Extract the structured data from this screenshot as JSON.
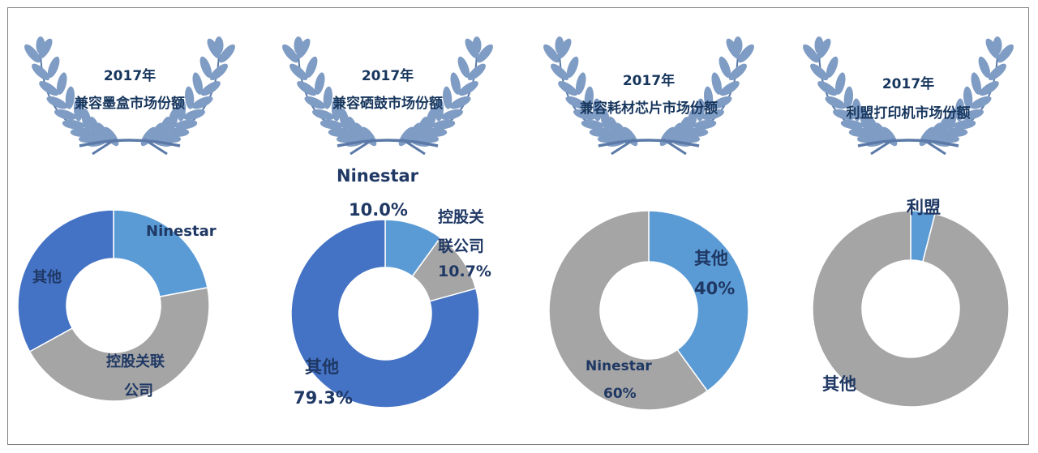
{
  "chart_data": [
    {
      "type": "pie",
      "title_line1": "2017年",
      "title_line2": "兼容墨盒市场份额",
      "slices": [
        {
          "label": "Ninestar",
          "value": 22,
          "color": "#5b9bd5"
        },
        {
          "label": "控股关联公司",
          "value": 45,
          "color": "#a5a5a5"
        },
        {
          "label": "其他",
          "value": 33,
          "color": "#4472c4"
        }
      ],
      "labels": {
        "a": "Ninestar",
        "b1": "控股关联",
        "b2": "公司",
        "c": "其他"
      }
    },
    {
      "type": "pie",
      "title_line1": "2017年",
      "title_line2": "兼容硒鼓市场份额",
      "slices": [
        {
          "label": "Ninestar",
          "value": 10.0,
          "color": "#5b9bd5"
        },
        {
          "label": "控股关联公司",
          "value": 10.7,
          "color": "#a5a5a5"
        },
        {
          "label": "其他",
          "value": 79.3,
          "color": "#4472c4"
        }
      ],
      "labels": {
        "a1": "Ninestar",
        "a2": "10.0%",
        "b1": "控股关",
        "b2": "联公司",
        "b3": "10.7%",
        "c1": "其他",
        "c2": "79.3%"
      }
    },
    {
      "type": "pie",
      "title_line1": "2017年",
      "title_line2": "兼容耗材芯片市场份额",
      "slices": [
        {
          "label": "其他",
          "value": 40,
          "color": "#5b9bd5"
        },
        {
          "label": "Ninestar",
          "value": 60,
          "color": "#a5a5a5"
        }
      ],
      "labels": {
        "a1": "其他",
        "a2": "40%",
        "b1": "Ninestar",
        "b2": "60%"
      }
    },
    {
      "type": "pie",
      "title_line1": "2017年",
      "title_line2": "利盟打印机市场份额",
      "slices": [
        {
          "label": "利盟",
          "value": 4,
          "color": "#5b9bd5"
        },
        {
          "label": "其他",
          "value": 96,
          "color": "#a5a5a5"
        }
      ],
      "labels": {
        "a": "利盟",
        "b": "其他"
      }
    }
  ]
}
